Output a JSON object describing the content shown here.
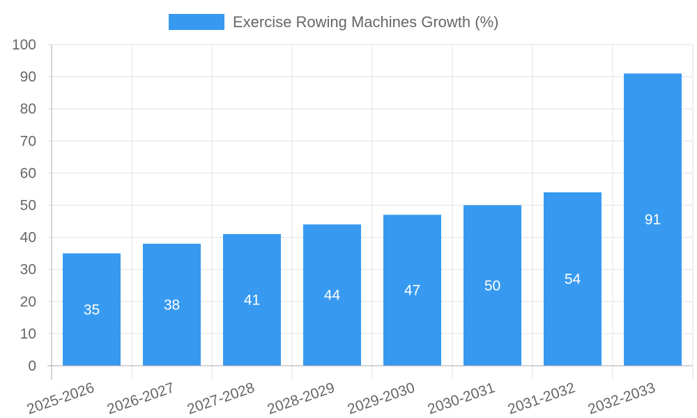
{
  "chart_data": {
    "type": "bar",
    "title": "",
    "legend": [
      {
        "label": "Exercise Rowing Machines Growth (%)",
        "color": "#379AF0"
      }
    ],
    "legend_position": "top",
    "categories": [
      "2025-2026",
      "2026-2027",
      "2027-2028",
      "2028-2029",
      "2029-2030",
      "2030-2031",
      "2031-2032",
      "2032-2033"
    ],
    "series": [
      {
        "name": "Exercise Rowing Machines Growth (%)",
        "values": [
          35,
          38,
          41,
          44,
          47,
          50,
          54,
          91
        ],
        "color": "#379AF0"
      }
    ],
    "data_labels": [
      "35",
      "38",
      "41",
      "44",
      "47",
      "50",
      "54",
      "91"
    ],
    "xlabel": "",
    "ylabel": "",
    "ylim": [
      0,
      100
    ],
    "yticks": [
      0,
      10,
      20,
      30,
      40,
      50,
      60,
      70,
      80,
      90,
      100
    ],
    "grid": true
  },
  "colors": {
    "bar": "#379AF0",
    "grid": "#e1e1e1",
    "axis": "#a8a8a8",
    "tick_text": "#666666",
    "data_label": "#ffffff"
  }
}
